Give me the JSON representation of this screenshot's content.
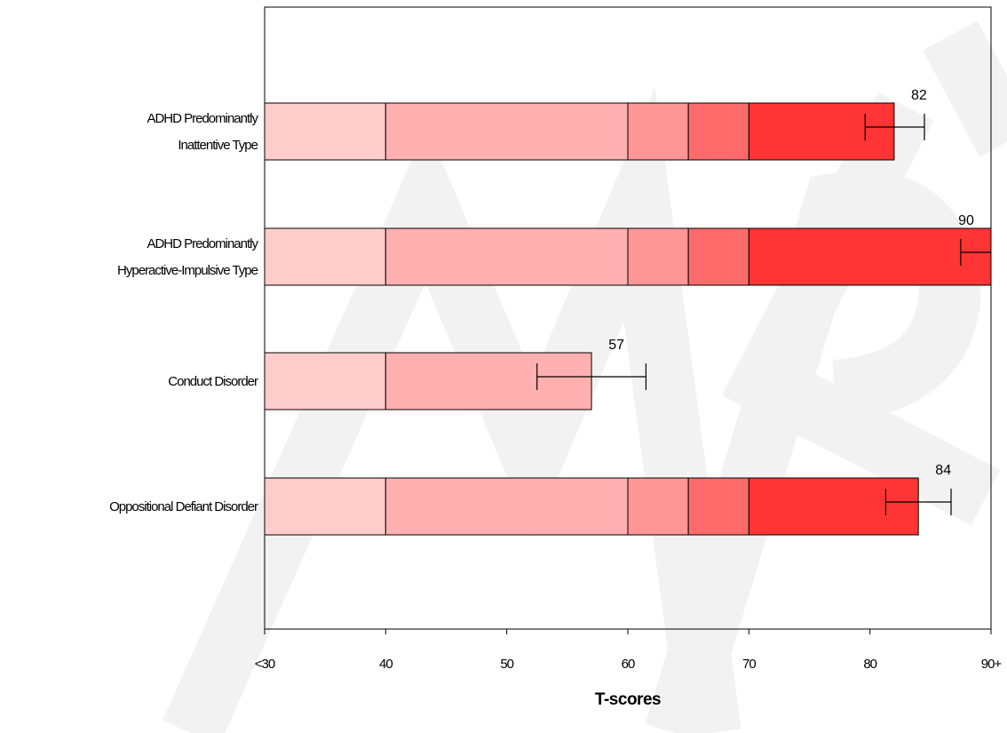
{
  "chart_data": {
    "type": "bar",
    "orientation": "horizontal",
    "stacked": true,
    "xlabel": "T-scores",
    "xlim": [
      30,
      90
    ],
    "x_ticks": [
      {
        "value": 30,
        "label": "<30"
      },
      {
        "value": 40,
        "label": "40"
      },
      {
        "value": 50,
        "label": "50"
      },
      {
        "value": 60,
        "label": "60"
      },
      {
        "value": 70,
        "label": "70"
      },
      {
        "value": 80,
        "label": "80"
      },
      {
        "value": 90,
        "label": "90+"
      }
    ],
    "band_edges": [
      30,
      40,
      60,
      65,
      70,
      90
    ],
    "band_colors": [
      "#ffcccc",
      "#ffb1b1",
      "#ff9696",
      "#ff6a6a",
      "#ff3434"
    ],
    "categories": [
      {
        "lines": [
          "ADHD Predominantly",
          "Inattentive Type"
        ],
        "value": 82,
        "value_label": "82",
        "error": [
          79.6,
          84.5
        ]
      },
      {
        "lines": [
          "ADHD Predominantly",
          "Hyperactive-Impulsive Type"
        ],
        "value": 90,
        "value_label": "90",
        "error": [
          87.5,
          92.5
        ]
      },
      {
        "lines": [
          "Conduct Disorder"
        ],
        "value": 57,
        "value_label": "57",
        "error": [
          52.5,
          61.5
        ]
      },
      {
        "lines": [
          "Oppositional Defiant Disorder"
        ],
        "value": 84,
        "value_label": "84",
        "error": [
          81.3,
          86.7
        ]
      }
    ],
    "grid": false,
    "legend": "none"
  }
}
